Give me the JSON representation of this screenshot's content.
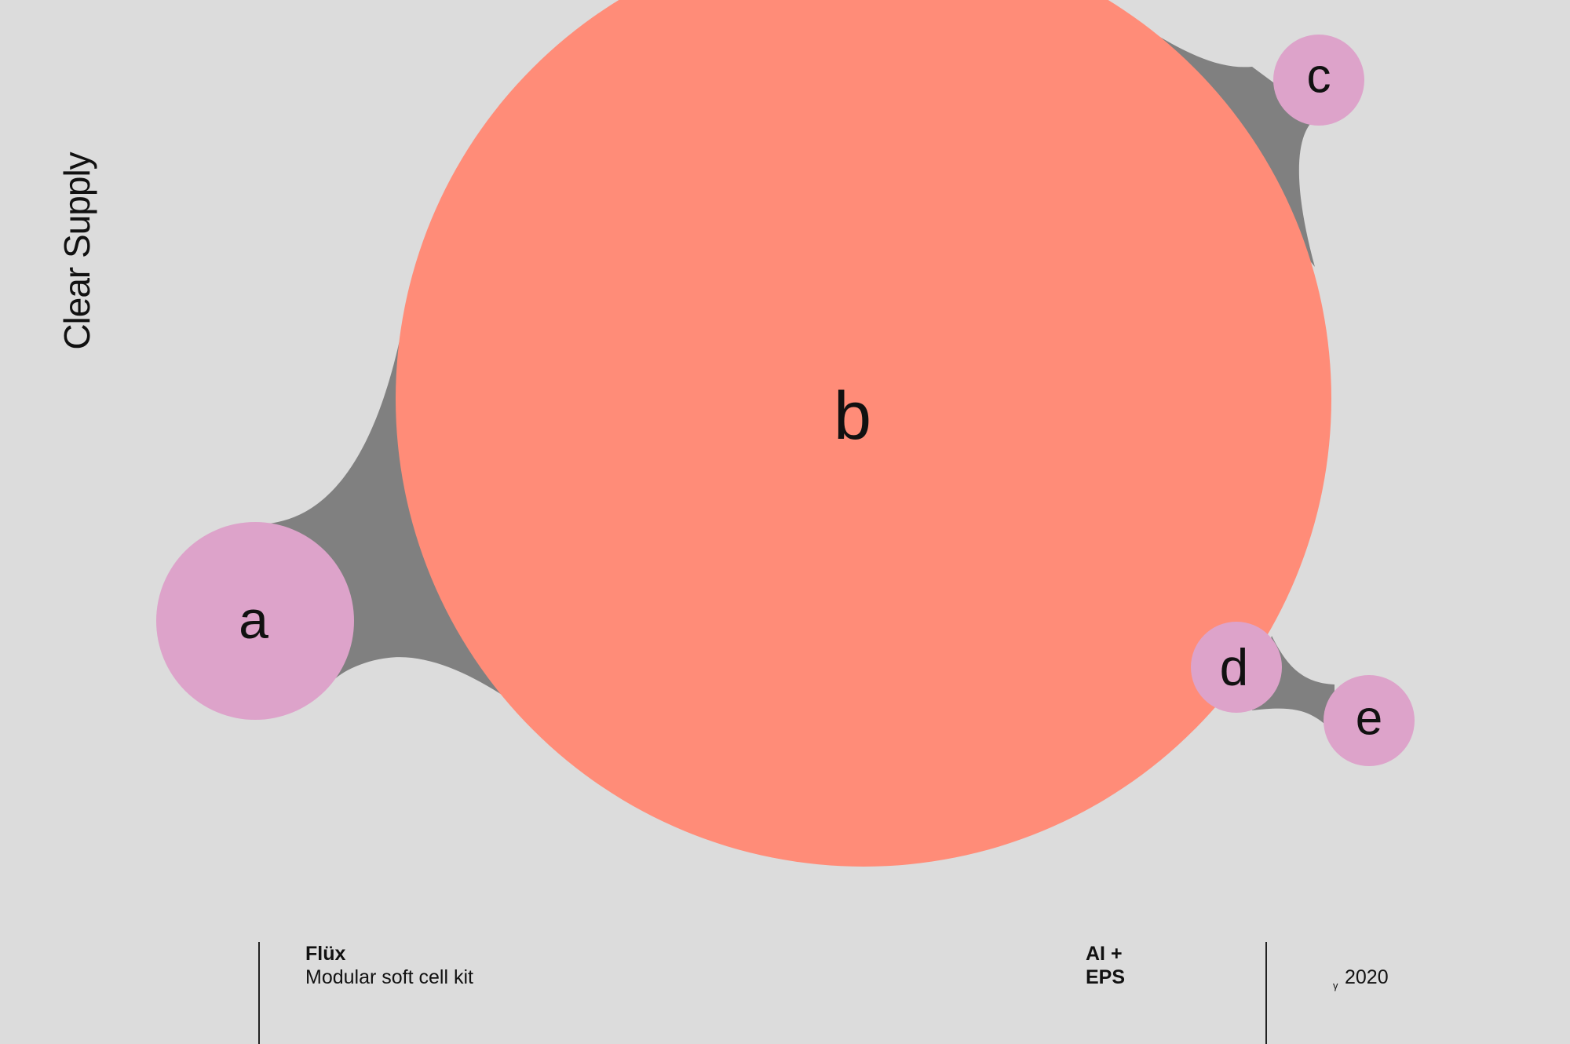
{
  "brand": "Clear Supply",
  "cells": {
    "a": "a",
    "b": "b",
    "c": "c",
    "d": "d",
    "e": "e"
  },
  "colors": {
    "background": "#dcdcdc",
    "big_cell": "#ff8c78",
    "small_cell": "#dda3ca",
    "bridge": "#808080"
  },
  "footer": {
    "product_name": "Flüx",
    "product_desc": "Modular soft cell kit",
    "format_line1": "AI +",
    "format_line2": "EPS",
    "year_mark": "γ",
    "year": "2020"
  }
}
